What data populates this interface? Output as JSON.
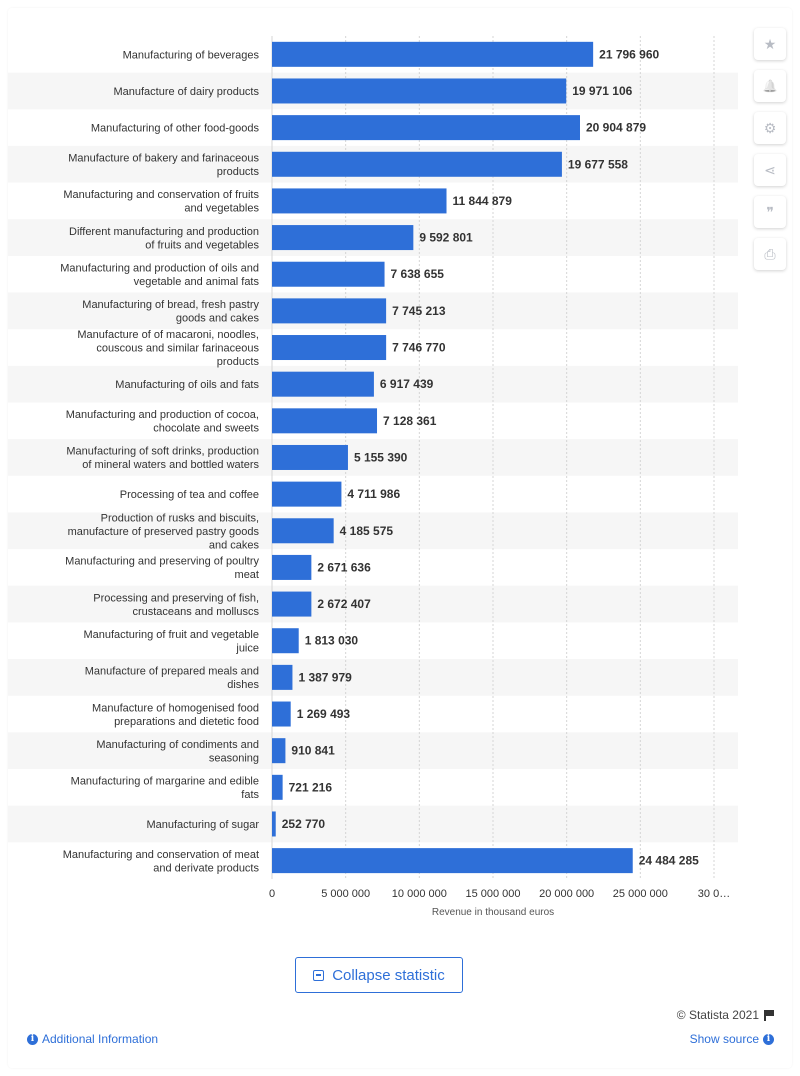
{
  "chart_data": {
    "type": "bar",
    "orientation": "horizontal",
    "categories": [
      "Manufacturing of beverages",
      "Manufacture of dairy products",
      "Manufacturing of other food-goods",
      "Manufacture of bakery and farinaceous products",
      "Manufacturing and conservation of fruits and vegetables",
      "Different manufacturing and production of fruits and vegetables",
      "Manufacturing and production of oils and vegetable and animal fats",
      "Manufacturing of bread, fresh pastry goods and cakes",
      "Manufacture of of macaroni, noodles, couscous and similar farinaceous products",
      "Manufacturing of oils and fats",
      "Manufacturing and production of cocoa, chocolate and sweets",
      "Manufacturing of soft drinks, production of mineral waters and bottled waters",
      "Processing of tea and coffee",
      "Production of rusks and biscuits, manufacture of preserved pastry goods and cakes",
      "Manufacturing and preserving of poultry meat",
      "Processing and preserving of fish, crustaceans and molluscs",
      "Manufacturing of fruit and vegetable juice",
      "Manufacture of prepared meals and dishes",
      "Manufacture of homogenised food preparations and dietetic food",
      "Manufacturing of condiments and seasoning",
      "Manufacturing of margarine and edible fats",
      "Manufacturing of sugar",
      "Manufacturing and conservation of meat and derivate products"
    ],
    "category_lines": [
      [
        "Manufacturing of beverages"
      ],
      [
        "Manufacture of dairy products"
      ],
      [
        "Manufacturing of other food-goods"
      ],
      [
        "Manufacture of bakery and farinaceous",
        "products"
      ],
      [
        "Manufacturing and conservation of fruits",
        "and vegetables"
      ],
      [
        "Different manufacturing and production",
        "of fruits and vegetables"
      ],
      [
        "Manufacturing and production of oils and",
        "vegetable and animal fats"
      ],
      [
        "Manufacturing of bread, fresh pastry",
        "goods and cakes"
      ],
      [
        "Manufacture of of macaroni, noodles,",
        "couscous and similar farinaceous",
        "products"
      ],
      [
        "Manufacturing of oils and fats"
      ],
      [
        "Manufacturing and production of cocoa,",
        "chocolate and sweets"
      ],
      [
        "Manufacturing of soft drinks, production",
        "of mineral waters and bottled waters"
      ],
      [
        "Processing of tea and coffee"
      ],
      [
        "Production of rusks and biscuits,",
        "manufacture of preserved pastry goods",
        "and cakes"
      ],
      [
        "Manufacturing and preserving of poultry",
        "meat"
      ],
      [
        "Processing and preserving of fish,",
        "crustaceans and molluscs"
      ],
      [
        "Manufacturing of fruit and vegetable",
        "juice"
      ],
      [
        "Manufacture of prepared meals and",
        "dishes"
      ],
      [
        "Manufacture of homogenised food",
        "preparations and dietetic food"
      ],
      [
        "Manufacturing of condiments and",
        "seasoning"
      ],
      [
        "Manufacturing of margarine and edible",
        "fats"
      ],
      [
        "Manufacturing of sugar"
      ],
      [
        "Manufacturing and conservation of meat",
        "and derivate products"
      ]
    ],
    "values": [
      21796960,
      19971106,
      20904879,
      19677558,
      11844879,
      9592801,
      7638655,
      7745213,
      7746770,
      6917439,
      7128361,
      5155390,
      4711986,
      4185575,
      2671636,
      2672407,
      1813030,
      1387979,
      1269493,
      910841,
      721216,
      252770,
      24484285
    ],
    "value_labels": [
      "21 796 960",
      "19 971 106",
      "20 904 879",
      "19 677 558",
      "11 844 879",
      "9 592 801",
      "7 638 655",
      "7 745 213",
      "7 746 770",
      "6 917 439",
      "7 128 361",
      "5 155 390",
      "4 711 986",
      "4 185 575",
      "2 671 636",
      "2 672 407",
      "1 813 030",
      "1 387 979",
      "1 269 493",
      "910 841",
      "721 216",
      "252 770",
      "24 484 285"
    ],
    "xlabel": "Revenue in thousand euros",
    "xlim": [
      0,
      30000000
    ],
    "x_ticks": [
      0,
      5000000,
      10000000,
      15000000,
      20000000,
      25000000,
      30000000
    ],
    "x_tick_labels": [
      "0",
      "5 000 000",
      "10 000 000",
      "15 000 000",
      "20 000 000",
      "25 000 000",
      "30 0…"
    ],
    "grid": true,
    "colors": {
      "bar": "#2e6fd8",
      "band": "#f6f6f6",
      "grid": "#d5d5d5"
    }
  },
  "toolbar": {
    "icons": [
      "star-icon",
      "bell-icon",
      "gear-icon",
      "share-icon",
      "quote-icon",
      "print-icon"
    ],
    "glyphs": [
      "★",
      "🔔",
      "⚙",
      "⋖",
      "❞",
      "⎙"
    ]
  },
  "actions": {
    "collapse_label": "Collapse statistic"
  },
  "footer": {
    "copyright": "© Statista 2021",
    "additional_info": "Additional Information",
    "show_source": "Show source"
  }
}
